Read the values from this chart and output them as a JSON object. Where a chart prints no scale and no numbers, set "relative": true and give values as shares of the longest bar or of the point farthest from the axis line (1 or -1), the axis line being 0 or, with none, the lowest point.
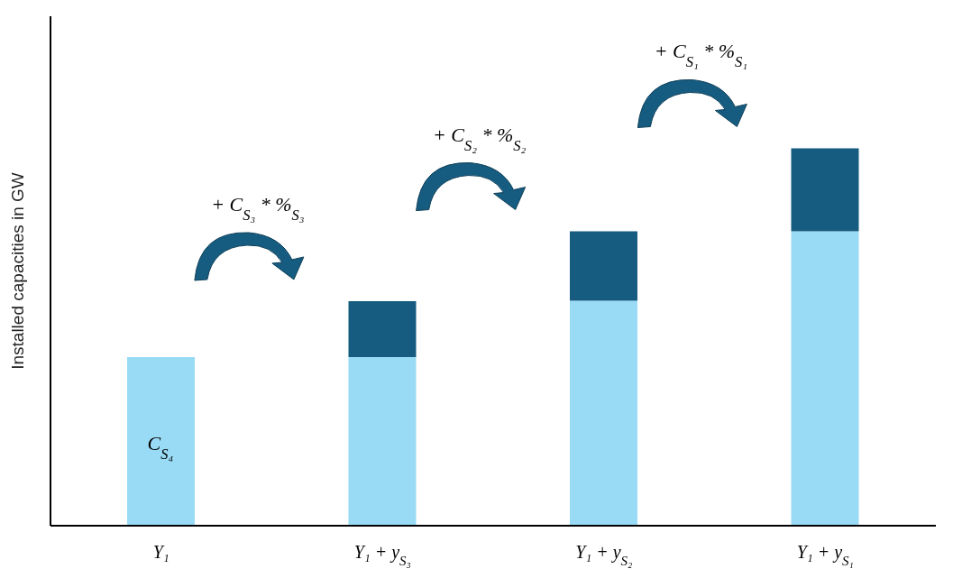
{
  "chart_data": {
    "type": "bar",
    "stacked": true,
    "relative": true,
    "ylabel": "Installed capacities in GW",
    "categories": [
      "Y₁",
      "Y₁ + y$_{S₃}$",
      "Y₁ + y$_{S₂}$",
      "Y₁ + y$_{S₁}$"
    ],
    "series": [
      {
        "color": "#99dbf5",
        "values": [
          0.447,
          0.447,
          0.596,
          0.78
        ]
      },
      {
        "color": "#165c80",
        "values": [
          null,
          0.148,
          0.184,
          0.22
        ]
      }
    ],
    "annotations": [
      "C$_{S₄}$",
      "+ C$_{S₃}$ * %$_{S₃}$",
      "+ C$_{S₂}$ * %$_{S₂}$",
      "+ C$_{S₁}$ * %$_{S₁}$"
    ]
  }
}
